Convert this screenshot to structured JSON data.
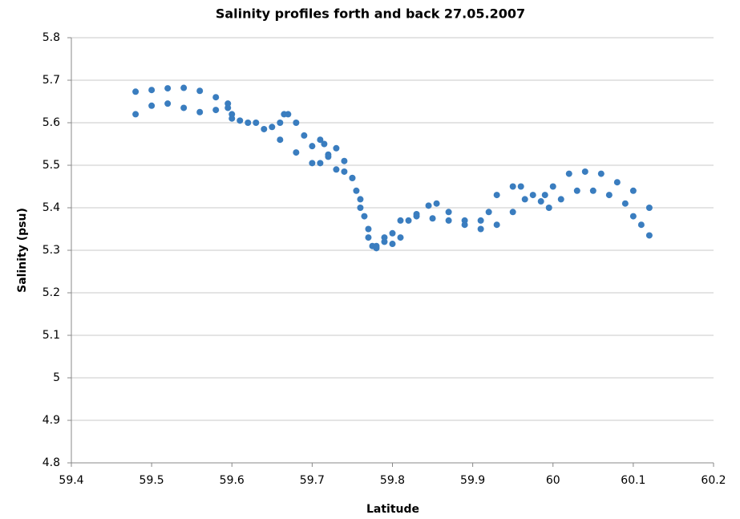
{
  "chart_data": {
    "type": "scatter",
    "title": "Salinity profiles  forth and back 27.05.2007",
    "x_label": "Latitude",
    "y_label": "Salinity (psu)",
    "xlim": [
      59.4,
      60.2
    ],
    "xticks": [
      59.4,
      59.5,
      59.6,
      59.7,
      59.8,
      59.9,
      60,
      60.1,
      60.2
    ],
    "ylim": [
      4.8,
      5.8
    ],
    "yticks": [
      4.8,
      4.9,
      5,
      5.1,
      5.2,
      5.3,
      5.4,
      5.5,
      5.6,
      5.7,
      5.8
    ],
    "grid": true,
    "series": [
      {
        "color": "#3a7dbf",
        "x": [
          59.48,
          59.5,
          59.52,
          59.54,
          59.56,
          59.58,
          59.595,
          59.6,
          59.61,
          59.63,
          59.65,
          59.66,
          59.665,
          59.67,
          59.68,
          59.69,
          59.7,
          59.71,
          59.715,
          59.72,
          59.73,
          59.74,
          59.75,
          59.755,
          59.76,
          59.77,
          59.775,
          59.78,
          59.79,
          59.8,
          59.81,
          59.83,
          59.85,
          59.87,
          59.89,
          59.91,
          59.92,
          59.93,
          59.95,
          59.96,
          59.975,
          59.99,
          60.0,
          60.02,
          60.04,
          60.06,
          60.08,
          60.1,
          60.12
        ],
        "values": [
          5.673,
          5.677,
          5.681,
          5.682,
          5.675,
          5.66,
          5.645,
          5.62,
          5.605,
          5.6,
          5.59,
          5.6,
          5.62,
          5.62,
          5.6,
          5.57,
          5.545,
          5.56,
          5.55,
          5.52,
          5.49,
          5.485,
          5.47,
          5.44,
          5.4,
          5.35,
          5.31,
          5.305,
          5.32,
          5.34,
          5.37,
          5.38,
          5.375,
          5.37,
          5.37,
          5.37,
          5.39,
          5.43,
          5.45,
          5.45,
          5.43,
          5.43,
          5.45,
          5.48,
          5.485,
          5.48,
          5.46,
          5.44,
          5.4
        ]
      },
      {
        "color": "#3a7dbf",
        "x": [
          59.48,
          59.5,
          59.52,
          59.54,
          59.56,
          59.58,
          59.595,
          59.6,
          59.62,
          59.64,
          59.66,
          59.68,
          59.7,
          59.71,
          59.72,
          59.73,
          59.74,
          59.75,
          59.76,
          59.765,
          59.77,
          59.78,
          59.79,
          59.8,
          59.81,
          59.82,
          59.83,
          59.845,
          59.855,
          59.87,
          59.89,
          59.91,
          59.93,
          59.95,
          59.965,
          59.985,
          59.995,
          60.01,
          60.03,
          60.05,
          60.07,
          60.09,
          60.1,
          60.11,
          60.12
        ],
        "values": [
          5.62,
          5.64,
          5.645,
          5.635,
          5.625,
          5.63,
          5.635,
          5.61,
          5.6,
          5.585,
          5.56,
          5.53,
          5.505,
          5.505,
          5.525,
          5.54,
          5.51,
          5.47,
          5.42,
          5.38,
          5.33,
          5.31,
          5.33,
          5.315,
          5.33,
          5.37,
          5.385,
          5.405,
          5.41,
          5.39,
          5.36,
          5.35,
          5.36,
          5.39,
          5.42,
          5.415,
          5.4,
          5.42,
          5.44,
          5.44,
          5.43,
          5.41,
          5.38,
          5.36,
          5.335
        ]
      }
    ]
  }
}
